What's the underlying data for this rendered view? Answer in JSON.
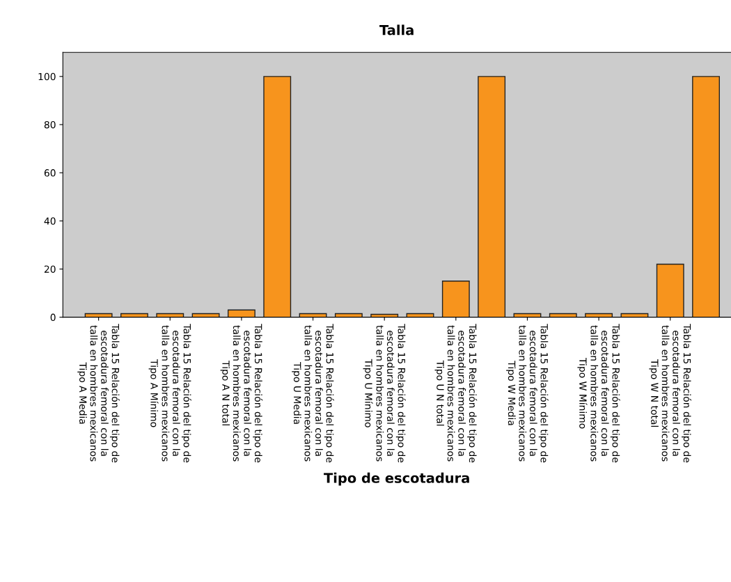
{
  "chart_data": {
    "type": "bar",
    "title": "Talla",
    "xlabel": "Tipo de escotadura",
    "categories": [
      "Tabla 15 Relación del tipo de escotadura femoral con la talla en hombres mexicanos Tipo A Media",
      null,
      "Tabla 15 Relación del tipo de escotadura femoral con la talla en hombres mexicanos Tipo A Mínimo",
      null,
      "Tabla 15 Relación del tipo de escotadura femoral con la talla en hombres mexicanos Tipo A N total",
      null,
      "Tabla 15 Relación del tipo de escotadura femoral con la talla en hombres mexicanos Tipo U Media",
      null,
      "Tabla 15 Relación del tipo de escotadura femoral con la talla en hombres mexicanos Tipo U Mínimo",
      null,
      "Tabla 15 Relación del tipo de escotadura femoral con la talla en hombres mexicanos Tipo U N total",
      null,
      "Tabla 15 Relación del tipo de escotadura femoral con la talla en hombres mexicanos Tipo W Media",
      null,
      "Tabla 15 Relación del tipo de escotadura femoral con la talla en hombres mexicanos Tipo W Mínimo",
      null,
      "Tabla 15 Relación del tipo de escotadura femoral con la talla en hombres mexicanos Tipo W N total",
      null
    ],
    "values": [
      1.5,
      1.5,
      1.5,
      1.5,
      3,
      100,
      1.5,
      1.5,
      1.2,
      1.5,
      15,
      100,
      1.5,
      1.5,
      1.5,
      1.5,
      22,
      100
    ],
    "color": "#f7941d",
    "ylim": [
      0,
      110
    ],
    "yticks": [
      0,
      20,
      40,
      60,
      80,
      100
    ],
    "grid": false
  }
}
